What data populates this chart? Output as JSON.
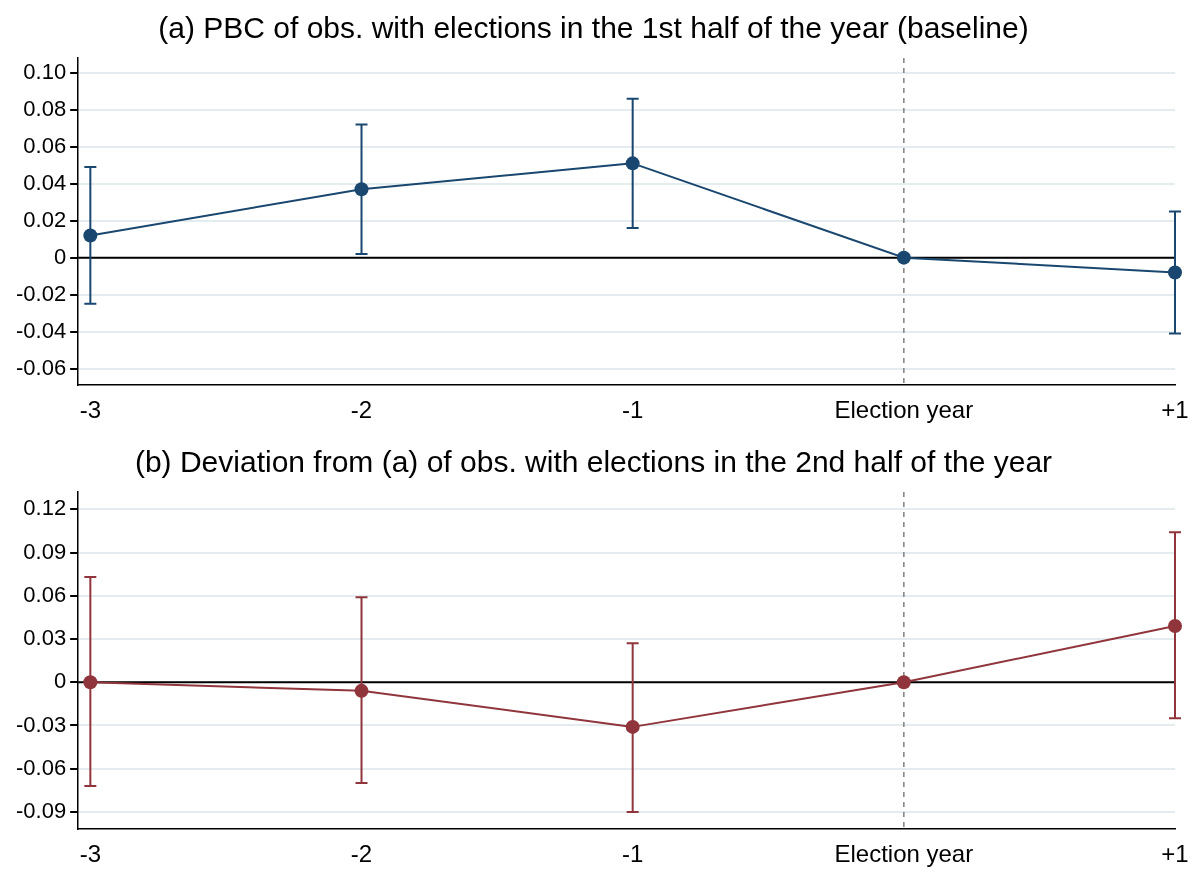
{
  "chart_data": [
    {
      "type": "line",
      "title": "(a) PBC of obs. with elections in the 1st half of the year (baseline)",
      "categories": [
        "-3",
        "-2",
        "-1",
        "Election year",
        "+1"
      ],
      "series": [
        {
          "color": "#1a476f",
          "values": [
            0.012,
            0.037,
            0.051,
            0,
            -0.008
          ],
          "errors": [
            [
              -0.025,
              0.049
            ],
            [
              0.002,
              0.072
            ],
            [
              0.016,
              0.086
            ],
            null,
            [
              -0.041,
              0.025
            ]
          ]
        }
      ],
      "ylim": [
        -0.069,
        0.108
      ],
      "yticks": [
        -0.06,
        -0.04,
        -0.02,
        0,
        0.02,
        0.04,
        0.06,
        0.08,
        {
          "value": 0.1,
          "label": "0.10"
        }
      ],
      "grid": "y",
      "legend": false,
      "marker": "circle",
      "line_style": "solid",
      "ref_lines": [
        {
          "axis": "y",
          "value": 0,
          "color": "#000000",
          "line_style": "solid"
        },
        {
          "axis": "x",
          "value": "Election year",
          "color": "#808080",
          "line_style": "dashed"
        }
      ]
    },
    {
      "type": "line",
      "title": "(b) Deviation from (a) of obs. with elections in the 2nd half of the year",
      "categories": [
        "-3",
        "-2",
        "-1",
        "Election year",
        "+1"
      ],
      "series": [
        {
          "color": "#90353b",
          "values": [
            0,
            -0.006,
            -0.031,
            0,
            0.039
          ],
          "errors": [
            [
              -0.072,
              0.073
            ],
            [
              -0.07,
              0.059
            ],
            [
              -0.09,
              0.027
            ],
            null,
            [
              -0.025,
              0.104
            ]
          ]
        }
      ],
      "ylim": [
        -0.102,
        0.132
      ],
      "yticks": [
        -0.09,
        -0.06,
        -0.03,
        0,
        0.03,
        0.06,
        0.09,
        0.12
      ],
      "grid": "y",
      "legend": false,
      "marker": "circle",
      "line_style": "solid",
      "ref_lines": [
        {
          "axis": "y",
          "value": 0,
          "color": "#000000",
          "line_style": "solid"
        },
        {
          "axis": "x",
          "value": "Election year",
          "color": "#808080",
          "line_style": "dashed"
        }
      ]
    }
  ]
}
